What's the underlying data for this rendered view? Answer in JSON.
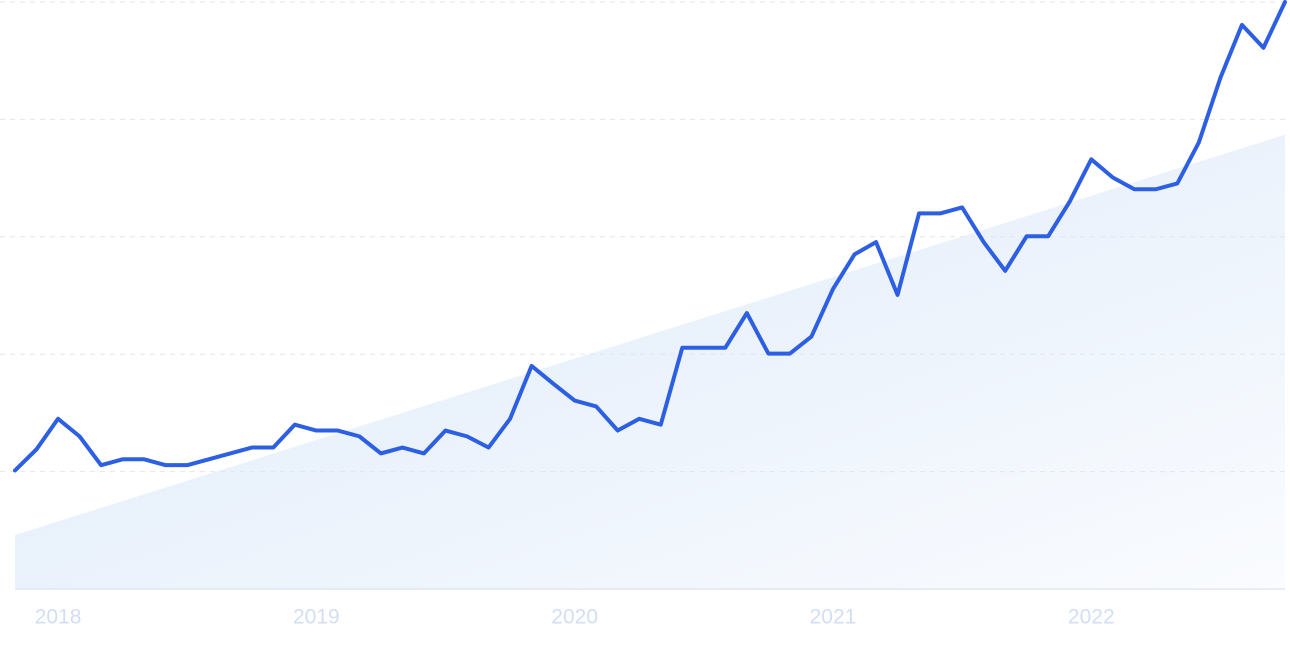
{
  "chart_data": {
    "type": "line",
    "categories": [
      null,
      null,
      "2018",
      null,
      null,
      null,
      null,
      null,
      null,
      null,
      null,
      null,
      null,
      null,
      "2019",
      null,
      null,
      null,
      null,
      null,
      null,
      null,
      null,
      null,
      null,
      null,
      "2020",
      null,
      null,
      null,
      null,
      null,
      null,
      null,
      null,
      null,
      null,
      null,
      "2021",
      null,
      null,
      null,
      null,
      null,
      null,
      null,
      null,
      null,
      null,
      null,
      "2022",
      null,
      null,
      null,
      null,
      null,
      null,
      null,
      null,
      null
    ],
    "series": [
      {
        "color": "#2d5fe3",
        "values": [
          20.2,
          23.8,
          29.0,
          26.0,
          21.1,
          22.1,
          22.1,
          21.1,
          21.1,
          22.1,
          23.1,
          24.1,
          24.1,
          28.0,
          27.0,
          27.0,
          26.0,
          23.1,
          24.1,
          23.1,
          27.0,
          26.0,
          24.1,
          29.0,
          38.0,
          35.0,
          32.1,
          31.1,
          27.0,
          29.0,
          28.0,
          41.1,
          41.1,
          41.1,
          47.0,
          40.1,
          40.1,
          43.0,
          51.1,
          57.0,
          59.1,
          50.1,
          64.0,
          64.0,
          65.0,
          59.1,
          54.2,
          60.1,
          60.1,
          66.0,
          73.2,
          70.1,
          68.1,
          68.1,
          69.1,
          76.1,
          87.1,
          96.1,
          92.2,
          100
        ]
      }
    ],
    "trend": {
      "color": "#dce9fa",
      "values": [
        9.2,
        77.4
      ]
    },
    "ylim": [
      0,
      100
    ],
    "yticks": [
      0,
      20,
      40,
      60,
      80,
      100
    ],
    "grid": true
  }
}
